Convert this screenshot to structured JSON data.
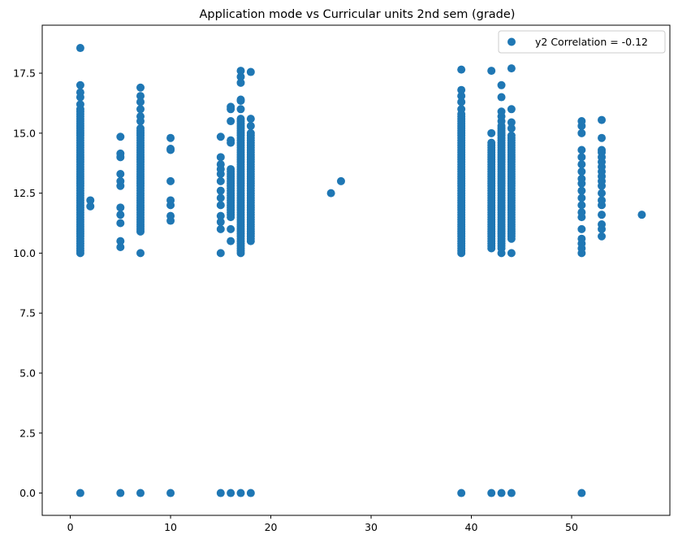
{
  "chart_data": {
    "type": "scatter",
    "title": "Application mode vs Curricular units 2nd sem (grade)",
    "xlabel": "",
    "ylabel": "",
    "xlim": [
      -2.8,
      59.8
    ],
    "ylim": [
      -0.93,
      19.5
    ],
    "xticks": [
      0,
      10,
      20,
      30,
      40,
      50
    ],
    "xtick_labels": [
      "0",
      "10",
      "20",
      "30",
      "40",
      "50"
    ],
    "yticks": [
      0,
      2.5,
      5,
      7.5,
      10,
      12.5,
      15,
      17.5
    ],
    "ytick_labels": [
      "0.0",
      "2.5",
      "5.0",
      "7.5",
      "10.0",
      "12.5",
      "15.0",
      "17.5"
    ],
    "grid": false,
    "legend": {
      "position": "top-right"
    },
    "color": "#1f77b4",
    "series": [
      {
        "name": "y2 Correlation = -0.12",
        "columns": [
          {
            "x": 1,
            "values": [
              0
            ],
            "dense_min": 10.0,
            "dense_max": 16.0,
            "extra": [
              16.2,
              16.5,
              16.7,
              17.0,
              18.55
            ]
          },
          {
            "x": 2,
            "values": [
              11.95,
              12.2
            ]
          },
          {
            "x": 5,
            "values": [
              0,
              10.25,
              10.5,
              11.25,
              11.6,
              11.9,
              12.8,
              13.0,
              13.3,
              14.0,
              14.15,
              14.85
            ]
          },
          {
            "x": 7,
            "values": [
              0
            ],
            "dense_min": 10.9,
            "dense_max": 15.2,
            "extra": [
              10.0,
              15.5,
              15.7,
              16.0,
              16.3,
              16.55,
              16.9
            ]
          },
          {
            "x": 10,
            "values": [
              0,
              11.35,
              11.55,
              12.0,
              12.2,
              13.0,
              14.3,
              14.35,
              14.8
            ]
          },
          {
            "x": 15,
            "values": [
              0,
              10.0,
              11.0,
              11.3,
              11.55,
              12.0,
              12.3,
              12.6,
              13.0,
              13.3,
              13.5,
              13.7,
              14.0,
              14.85
            ]
          },
          {
            "x": 16,
            "values": [
              0,
              10.5,
              11.0
            ],
            "dense_min": 11.5,
            "dense_max": 13.5,
            "extra": [
              14.6,
              14.7,
              15.5,
              16.0,
              16.1
            ]
          },
          {
            "x": 17,
            "values": [
              0
            ],
            "dense_min": 10.0,
            "dense_max": 15.6,
            "extra": [
              16.0,
              16.35,
              16.4,
              17.1,
              17.35,
              17.6
            ]
          },
          {
            "x": 18,
            "values": [
              0
            ],
            "dense_min": 10.5,
            "dense_max": 15.0,
            "extra": [
              15.3,
              15.6,
              17.55
            ]
          },
          {
            "x": 26,
            "values": [
              12.5
            ]
          },
          {
            "x": 27,
            "values": [
              13.0
            ]
          },
          {
            "x": 39,
            "values": [
              0
            ],
            "dense_min": 10.0,
            "dense_max": 15.8,
            "extra": [
              16.0,
              16.3,
              16.55,
              16.8,
              17.65
            ]
          },
          {
            "x": 42,
            "values": [
              0
            ],
            "dense_min": 10.2,
            "dense_max": 14.6,
            "extra": [
              15.0,
              17.6
            ]
          },
          {
            "x": 43,
            "values": [
              0,
              10.0
            ],
            "dense_min": 10.2,
            "dense_max": 15.3,
            "extra": [
              15.5,
              15.7,
              15.9,
              16.5,
              17.0
            ]
          },
          {
            "x": 44,
            "values": [
              0,
              10.0
            ],
            "dense_min": 10.6,
            "dense_max": 14.9,
            "extra": [
              15.2,
              15.45,
              16.0,
              17.7
            ]
          },
          {
            "x": 51,
            "values": [
              0,
              10.0,
              10.2,
              10.4,
              10.6,
              11.0,
              11.5,
              11.7,
              12.0,
              12.3,
              12.6,
              12.9,
              13.1,
              13.4,
              13.7,
              14.0,
              14.3,
              15.0,
              15.3,
              15.5
            ]
          },
          {
            "x": 53,
            "values": [
              10.7,
              11.0,
              11.2,
              11.6,
              12.0,
              12.2,
              12.5,
              12.8,
              13.0,
              13.2,
              13.4,
              13.6,
              13.8,
              14.0,
              14.2,
              14.3,
              14.8,
              15.55
            ]
          },
          {
            "x": 57,
            "values": [
              11.6
            ]
          }
        ]
      }
    ]
  }
}
